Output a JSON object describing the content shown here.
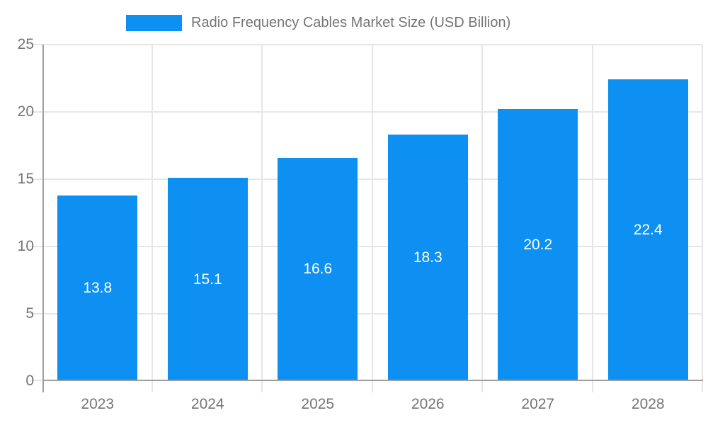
{
  "legend": {
    "label": "Radio Frequency Cables Market Size (USD Billion)",
    "swatch_color": "#0d90f2"
  },
  "chart_data": {
    "type": "bar",
    "title": "Radio Frequency Cables Market Size (USD Billion)",
    "categories": [
      "2023",
      "2024",
      "2025",
      "2026",
      "2027",
      "2028"
    ],
    "series": [
      {
        "name": "Radio Frequency Cables Market Size (USD Billion)",
        "values": [
          13.8,
          15.1,
          16.6,
          18.3,
          20.2,
          22.4
        ]
      }
    ],
    "value_labels": [
      "13.8",
      "15.1",
      "16.6",
      "18.3",
      "20.2",
      "22.4"
    ],
    "xlabel": "",
    "ylabel": "",
    "ylim": [
      0,
      25
    ],
    "yticks": [
      0,
      5,
      10,
      15,
      20,
      25
    ],
    "grid": true,
    "legend_position": "top",
    "colors": {
      "bar": "#0d90f2",
      "value_label": "#ffffff",
      "axis_text": "#757575",
      "gridline": "#e6e6e6",
      "axis_line": "#9e9e9e",
      "background": "#ffffff"
    }
  }
}
